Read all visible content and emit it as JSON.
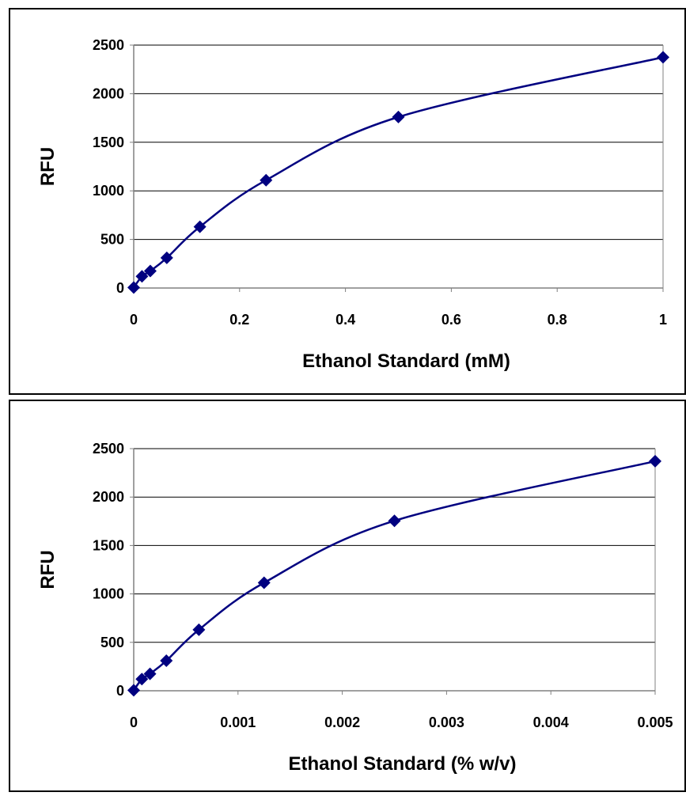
{
  "chart_data": [
    {
      "type": "scatter",
      "title": "",
      "xlabel": "Ethanol Standard (mM)",
      "ylabel": "RFU",
      "xlim": [
        0,
        1
      ],
      "ylim": [
        0,
        2500
      ],
      "xticks": [
        "0",
        "0.2",
        "0.4",
        "0.6",
        "0.8",
        "1"
      ],
      "xtick_values": [
        0,
        0.2,
        0.4,
        0.6,
        0.8,
        1
      ],
      "yticks": [
        "0",
        "500",
        "1000",
        "1500",
        "2000",
        "2500"
      ],
      "ytick_values": [
        0,
        500,
        1000,
        1500,
        2000,
        2500
      ],
      "grid": "horizontal",
      "line": "smooth",
      "marker": "diamond",
      "color": "#000080",
      "series": [
        {
          "x": [
            0,
            0.0156,
            0.0313,
            0.0625,
            0.125,
            0.25,
            0.5,
            1
          ],
          "y": [
            5,
            120,
            175,
            310,
            630,
            1110,
            1760,
            2375
          ]
        }
      ]
    },
    {
      "type": "scatter",
      "title": "",
      "xlabel": "Ethanol Standard (% w/v)",
      "ylabel": "RFU",
      "xlim": [
        0,
        0.005
      ],
      "ylim": [
        0,
        2500
      ],
      "xticks": [
        "0",
        "0.001",
        "0.002",
        "0.003",
        "0.004",
        "0.005"
      ],
      "xtick_values": [
        0,
        0.001,
        0.002,
        0.003,
        0.004,
        0.005
      ],
      "yticks": [
        "0",
        "500",
        "1000",
        "1500",
        "2000",
        "2500"
      ],
      "ytick_values": [
        0,
        500,
        1000,
        1500,
        2000,
        2500
      ],
      "grid": "horizontal",
      "line": "smooth",
      "marker": "diamond",
      "color": "#000080",
      "series": [
        {
          "x": [
            0,
            7.8e-05,
            0.000156,
            0.000313,
            0.000625,
            0.00125,
            0.0025,
            0.005
          ],
          "y": [
            5,
            120,
            175,
            310,
            630,
            1115,
            1755,
            2370
          ]
        }
      ]
    }
  ]
}
